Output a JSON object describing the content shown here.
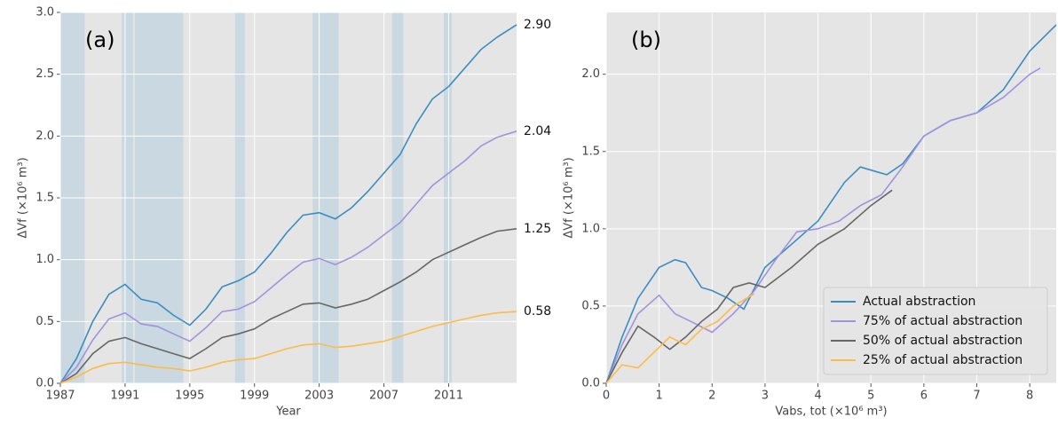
{
  "chart_data": [
    {
      "type": "line",
      "annotation": "(a)",
      "xlabel": "Year",
      "ylabel": "ΔVf (×10⁶ m³)",
      "xlim": [
        1987,
        2015.2
      ],
      "xticks": [
        1987,
        1991,
        1995,
        1999,
        2003,
        2007,
        2011
      ],
      "ylim": [
        0,
        3
      ],
      "yticks": [
        {
          "value": 0,
          "label": "0.0"
        },
        0.5,
        {
          "value": 1,
          "label": "1.0"
        },
        1.5,
        {
          "value": 2,
          "label": "2.0"
        },
        2.5,
        {
          "value": 3,
          "label": "3.0"
        }
      ],
      "grid": true,
      "shaded_periods": [
        [
          1987,
          1988.5
        ],
        [
          1990.8,
          1991.5
        ],
        [
          1991.6,
          1994.6
        ],
        [
          1997.8,
          1998.4
        ],
        [
          2002.6,
          2004.2
        ],
        [
          2007.5,
          2008.2
        ],
        [
          2010.7,
          2011.2
        ]
      ],
      "x": [
        1987,
        1988,
        1989,
        1990,
        1991,
        1992,
        1993,
        1994,
        1995,
        1996,
        1997,
        1998,
        1999,
        2000,
        2001,
        2002,
        2003,
        2004,
        2005,
        2006,
        2007,
        2008,
        2009,
        2010,
        2011,
        2012,
        2013,
        2014,
        2015.2
      ],
      "series": [
        {
          "name": "Actual abstraction",
          "color": "#3a8dc0",
          "values": [
            0,
            0.2,
            0.5,
            0.72,
            0.8,
            0.68,
            0.65,
            0.55,
            0.47,
            0.6,
            0.78,
            0.83,
            0.9,
            1.05,
            1.22,
            1.36,
            1.38,
            1.33,
            1.42,
            1.55,
            1.7,
            1.85,
            2.1,
            2.3,
            2.4,
            2.55,
            2.7,
            2.8,
            2.9
          ]
        },
        {
          "name": "75% of actual abstraction",
          "color": "#a192e0",
          "values": [
            0,
            0.13,
            0.35,
            0.52,
            0.57,
            0.48,
            0.46,
            0.4,
            0.34,
            0.45,
            0.58,
            0.6,
            0.66,
            0.77,
            0.88,
            0.98,
            1.01,
            0.96,
            1.02,
            1.1,
            1.2,
            1.3,
            1.45,
            1.6,
            1.7,
            1.8,
            1.92,
            1.99,
            2.04
          ]
        },
        {
          "name": "50% of actual abstraction",
          "color": "#666666",
          "values": [
            0,
            0.08,
            0.24,
            0.34,
            0.37,
            0.32,
            0.28,
            0.24,
            0.2,
            0.28,
            0.37,
            0.4,
            0.44,
            0.52,
            0.58,
            0.64,
            0.65,
            0.61,
            0.64,
            0.68,
            0.75,
            0.82,
            0.9,
            1.0,
            1.06,
            1.12,
            1.18,
            1.23,
            1.25
          ]
        },
        {
          "name": "25% of actual abstraction",
          "color": "#fdbb47",
          "values": [
            0,
            0.05,
            0.12,
            0.16,
            0.17,
            0.15,
            0.13,
            0.12,
            0.1,
            0.13,
            0.17,
            0.19,
            0.2,
            0.24,
            0.28,
            0.31,
            0.32,
            0.29,
            0.3,
            0.32,
            0.34,
            0.38,
            0.42,
            0.46,
            0.49,
            0.52,
            0.55,
            0.57,
            0.58
          ]
        }
      ],
      "end_labels": [
        {
          "value": 2.9,
          "label": "2.90"
        },
        {
          "value": 2.04,
          "label": "2.04"
        },
        {
          "value": 1.25,
          "label": "1.25"
        },
        {
          "value": 0.58,
          "label": "0.58"
        }
      ]
    },
    {
      "type": "line",
      "annotation": "(b)",
      "xlabel": "Vabs, tot (×10⁶ m³)",
      "ylabel": "ΔVf (×10⁶ m³)",
      "xlim": [
        0,
        8.5
      ],
      "xticks": [
        0,
        1,
        2,
        3,
        4,
        5,
        6,
        7,
        8
      ],
      "ylim": [
        0,
        2.4
      ],
      "yticks": [
        {
          "value": 0,
          "label": "0.0"
        },
        0.5,
        {
          "value": 1,
          "label": "1.0"
        },
        1.5,
        {
          "value": 2,
          "label": "2.0"
        }
      ],
      "grid": true,
      "legend": "lower right",
      "series": [
        {
          "name": "Actual abstraction",
          "color": "#3a8dc0",
          "x": [
            0,
            0.3,
            0.6,
            1,
            1.3,
            1.5,
            1.8,
            2,
            2.3,
            2.6,
            3,
            3.5,
            4,
            4.5,
            4.8,
            5,
            5.3,
            5.6,
            6,
            6.5,
            7,
            7.5,
            8,
            8.5
          ],
          "values": [
            0,
            0.3,
            0.55,
            0.75,
            0.8,
            0.78,
            0.62,
            0.6,
            0.55,
            0.48,
            0.75,
            0.9,
            1.05,
            1.3,
            1.4,
            1.38,
            1.35,
            1.42,
            1.6,
            1.7,
            1.75,
            1.9,
            2.15,
            2.32
          ]
        },
        {
          "name": "75% of actual abstraction",
          "color": "#a192e0",
          "x": [
            0,
            0.3,
            0.6,
            1,
            1.3,
            1.6,
            2,
            2.4,
            2.8,
            3.2,
            3.6,
            4,
            4.4,
            4.8,
            5.2,
            5.6,
            6,
            6.5,
            7,
            7.5,
            8,
            8.2
          ],
          "values": [
            0,
            0.25,
            0.45,
            0.57,
            0.45,
            0.4,
            0.33,
            0.45,
            0.6,
            0.8,
            0.98,
            1.0,
            1.05,
            1.15,
            1.22,
            1.4,
            1.6,
            1.7,
            1.75,
            1.85,
            2.0,
            2.04
          ]
        },
        {
          "name": "50% of actual abstraction",
          "color": "#666666",
          "x": [
            0,
            0.3,
            0.6,
            0.9,
            1.2,
            1.5,
            1.8,
            2.1,
            2.4,
            2.7,
            3,
            3.5,
            4,
            4.5,
            5,
            5.4
          ],
          "values": [
            0,
            0.2,
            0.37,
            0.3,
            0.22,
            0.3,
            0.4,
            0.48,
            0.62,
            0.65,
            0.62,
            0.75,
            0.9,
            1.0,
            1.15,
            1.25
          ]
        },
        {
          "name": "25% of actual abstraction",
          "color": "#fdbb47",
          "x": [
            0,
            0.3,
            0.6,
            0.9,
            1.2,
            1.5,
            1.8,
            2.1,
            2.4,
            2.8
          ],
          "values": [
            0,
            0.12,
            0.1,
            0.2,
            0.3,
            0.25,
            0.35,
            0.4,
            0.5,
            0.58
          ]
        }
      ]
    }
  ]
}
